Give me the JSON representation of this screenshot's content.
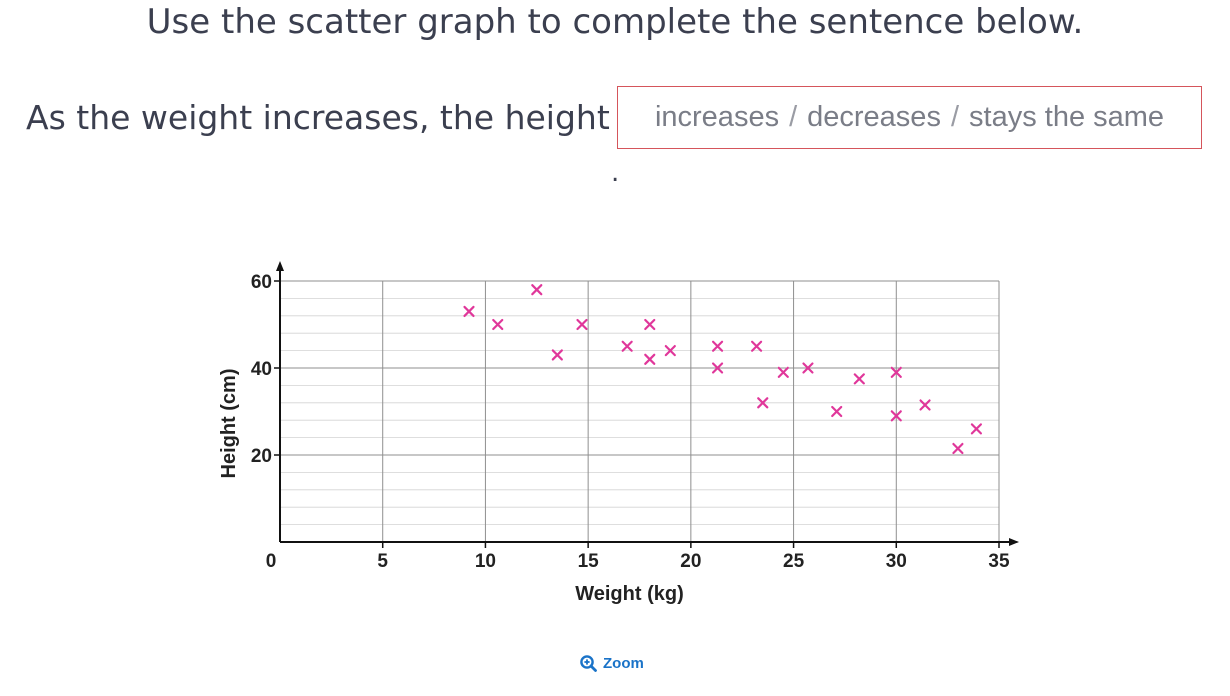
{
  "instruction": "Use the scatter graph to complete the sentence below.",
  "sentence": {
    "prefix": "As the weight increases, the height",
    "options": [
      "increases",
      "decreases",
      "stays the same"
    ],
    "separator": "/",
    "suffix": "."
  },
  "zoom": {
    "label": "Zoom",
    "icon": "zoom-in-icon"
  },
  "chart_data": {
    "type": "scatter",
    "xlabel": "Weight (kg)",
    "ylabel": "Height (cm)",
    "xlim": [
      0,
      35
    ],
    "ylim": [
      0,
      60
    ],
    "x_ticks": [
      0,
      5,
      10,
      15,
      20,
      25,
      30,
      35
    ],
    "y_ticks": [
      20,
      40,
      60
    ],
    "grid": true,
    "marker": "x",
    "marker_color": "#e0379a",
    "points": [
      {
        "x": 9.2,
        "y": 53
      },
      {
        "x": 10.6,
        "y": 50
      },
      {
        "x": 12.5,
        "y": 58
      },
      {
        "x": 13.5,
        "y": 43
      },
      {
        "x": 14.7,
        "y": 50
      },
      {
        "x": 16.9,
        "y": 45
      },
      {
        "x": 18.0,
        "y": 50
      },
      {
        "x": 18.0,
        "y": 42
      },
      {
        "x": 19.0,
        "y": 44
      },
      {
        "x": 21.3,
        "y": 45
      },
      {
        "x": 21.3,
        "y": 40
      },
      {
        "x": 23.2,
        "y": 45
      },
      {
        "x": 23.5,
        "y": 32
      },
      {
        "x": 24.5,
        "y": 39
      },
      {
        "x": 25.7,
        "y": 40
      },
      {
        "x": 27.1,
        "y": 30
      },
      {
        "x": 28.2,
        "y": 37.5
      },
      {
        "x": 30.0,
        "y": 39
      },
      {
        "x": 30.0,
        "y": 29
      },
      {
        "x": 31.4,
        "y": 31.5
      },
      {
        "x": 33.0,
        "y": 21.5
      },
      {
        "x": 33.9,
        "y": 26
      }
    ]
  }
}
